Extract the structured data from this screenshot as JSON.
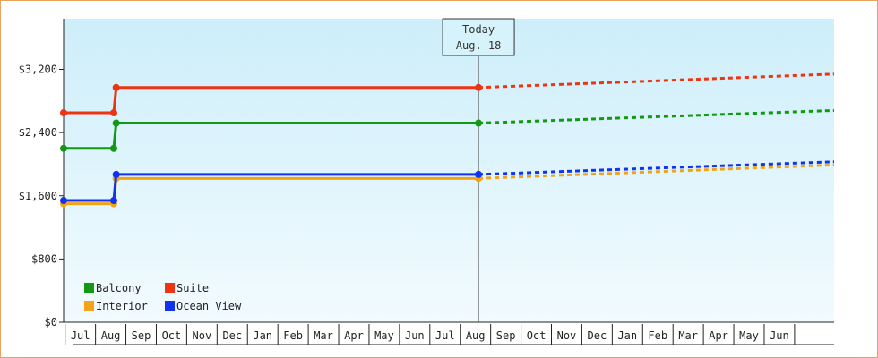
{
  "chart_data": {
    "type": "line",
    "title": "",
    "xlabel": "",
    "ylabel": "",
    "ylim": [
      0,
      3840
    ],
    "yticks": [
      {
        "value": 0,
        "label": "$0"
      },
      {
        "value": 800,
        "label": "$800"
      },
      {
        "value": 1600,
        "label": "$1,600"
      },
      {
        "value": 2400,
        "label": "$2,400"
      },
      {
        "value": 3200,
        "label": "$3,200"
      }
    ],
    "months": [
      "Jul",
      "Aug",
      "Sep",
      "Oct",
      "Nov",
      "Dec",
      "Jan",
      "Feb",
      "Mar",
      "Apr",
      "May",
      "Jun",
      "Jul",
      "Aug",
      "Sep",
      "Oct",
      "Nov",
      "Dec",
      "Jan",
      "Feb",
      "Mar",
      "Apr",
      "May",
      "Jun"
    ],
    "xrange": [
      -0.05,
      25.3
    ],
    "today": {
      "line1": "Today",
      "line2": "Aug. 18",
      "x": 13.6
    },
    "legend": {
      "placement": "bottom-left"
    },
    "series": [
      {
        "name": "Balcony",
        "color": "#119911",
        "points": [
          [
            -0.05,
            2200
          ],
          [
            1.6,
            2200
          ],
          [
            1.68,
            2520
          ],
          [
            13.6,
            2520
          ]
        ],
        "forecast": [
          [
            13.6,
            2520
          ],
          [
            25.3,
            2680
          ]
        ]
      },
      {
        "name": "Suite",
        "color": "#ee3311",
        "points": [
          [
            -0.05,
            2650
          ],
          [
            1.6,
            2650
          ],
          [
            1.68,
            2970
          ],
          [
            13.6,
            2970
          ]
        ],
        "forecast": [
          [
            13.6,
            2970
          ],
          [
            25.3,
            3140
          ]
        ]
      },
      {
        "name": "Interior",
        "color": "#f4a316",
        "points": [
          [
            -0.05,
            1500
          ],
          [
            1.6,
            1500
          ],
          [
            1.68,
            1820
          ],
          [
            13.6,
            1820
          ]
        ],
        "forecast": [
          [
            13.6,
            1820
          ],
          [
            25.3,
            1990
          ]
        ]
      },
      {
        "name": "Ocean View",
        "color": "#1133ee",
        "points": [
          [
            -0.05,
            1540
          ],
          [
            1.6,
            1540
          ],
          [
            1.68,
            1870
          ],
          [
            13.6,
            1870
          ]
        ],
        "forecast": [
          [
            13.6,
            1870
          ],
          [
            25.3,
            2030
          ]
        ]
      }
    ]
  }
}
